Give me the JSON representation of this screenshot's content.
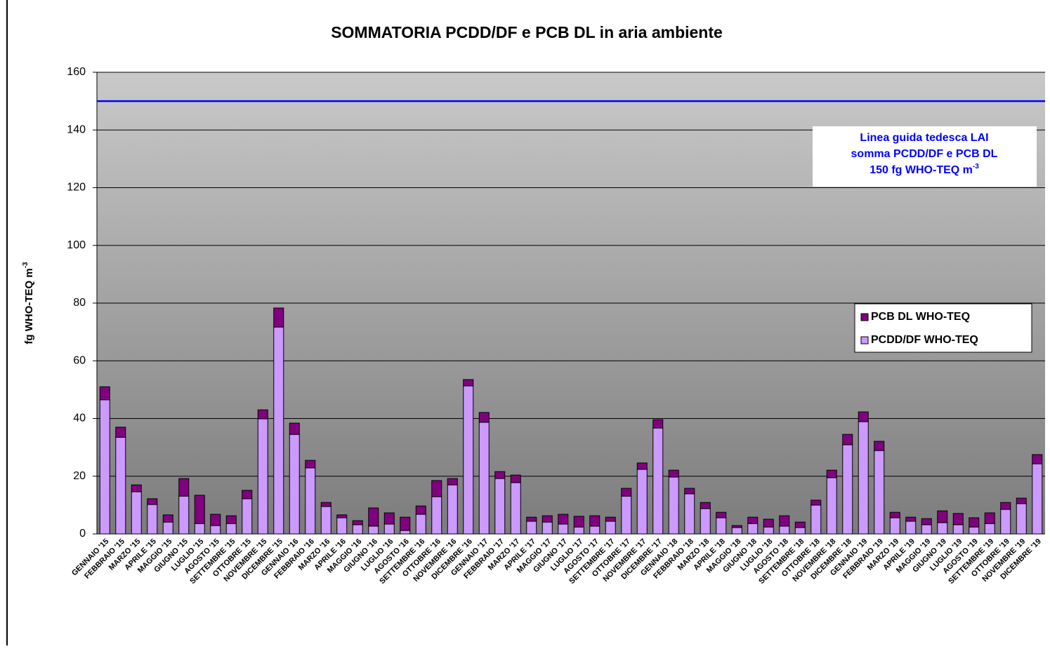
{
  "chart_data": {
    "type": "stacked_bar",
    "title": "SOMMATORIA PCDD/DF e PCB DL in aria ambiente",
    "y_label": {
      "text": "fg WHO-TEQ m",
      "sup": "-3"
    },
    "categories": [
      "GENNAIO '15",
      "FEBBRAIO '15",
      "MARZO '15",
      "APRILE '15",
      "MAGGIO '15",
      "GIUGNO '15",
      "LUGLIO '15",
      "AGOSTO '15",
      "SETTEMBRE '15",
      "OTTOBRE '15",
      "NOVEMBRE '15",
      "DICEMBRE '15",
      "GENNAIO '16",
      "FEBBRAIO '16",
      "MARZO '16",
      "APRILE '16",
      "MAGGIO '16",
      "GIUGNO '16",
      "LUGLIO '16",
      "AGOSTO '16",
      "SETTEMBRE '16",
      "OTTOBRE '16",
      "NOVEMBRE '16",
      "DICEMBRE '16",
      "GENNAIO '17",
      "FEBBRAIO '17",
      "MARZO '17",
      "APRILE '17",
      "MAGGIO '17",
      "GIUGNO '17",
      "LUGLIO '17",
      "AGOSTO '17",
      "SETTEMBRE '17",
      "OTTOBRE '17",
      "NOVEMBRE '17",
      "DICEMBRE '17",
      "GENNAIO '18",
      "FEBBRAIO '18",
      "MARZO '18",
      "APRILE '18",
      "MAGGIO '18",
      "GIUGNO '18",
      "LUGLIO '18",
      "AGOSTO '18",
      "SETTEMBRE '18",
      "OTTOBRE '18",
      "NOVEMBRE '18",
      "DICEMBRE '18",
      "GENNAIO '19",
      "FEBBRAIO '19",
      "MARZO '19",
      "APRILE '19",
      "MAGGIO '19",
      "GIUGNO '19",
      "LUGLIO '19",
      "AGOSTO '19",
      "SETTEMBRE '19",
      "OTTOBRE '19",
      "NOVEMBRE '19",
      "DICEMBRE '19"
    ],
    "series": [
      {
        "name": "PCDD/DF WHO-TEQ",
        "color": "#cc99ff",
        "values": [
          46.5,
          33.5,
          14.6,
          10.2,
          4.1,
          13.1,
          3.6,
          2.9,
          3.6,
          12.2,
          39.9,
          71.7,
          34.5,
          22.9,
          9.5,
          5.6,
          3.2,
          2.7,
          3.4,
          1.2,
          6.8,
          12.9,
          17,
          51.3,
          38.7,
          19.2,
          17.8,
          4.4,
          4.1,
          3.4,
          2.4,
          2.7,
          4.4,
          13.1,
          22.4,
          36.7,
          19.7,
          13.9,
          8.8,
          5.6,
          2.2,
          3.6,
          2.4,
          2.7,
          2.2,
          10,
          19.5,
          30.9,
          38.9,
          28.9,
          5.6,
          4.4,
          3.2,
          3.9,
          3.2,
          2.4,
          3.6,
          8.5,
          10.5,
          24.3
        ]
      },
      {
        "name": "PCB DL WHO-TEQ",
        "color": "#800080",
        "values": [
          4.5,
          3.5,
          2.4,
          2,
          2.5,
          6.1,
          9.8,
          3.9,
          2.7,
          2.9,
          3.1,
          6.6,
          3.9,
          2.6,
          1.4,
          1,
          1.4,
          6.3,
          3.9,
          4.6,
          2.9,
          5.6,
          2.2,
          2.2,
          3.4,
          2.4,
          2.6,
          1.4,
          2.2,
          3.4,
          3.7,
          3.6,
          1.4,
          2.7,
          2.2,
          2.9,
          2.4,
          1.9,
          2.1,
          1.9,
          0.7,
          2.2,
          2.7,
          3.6,
          1.9,
          1.7,
          2.6,
          3.6,
          3.4,
          3.2,
          1.9,
          1.4,
          2.1,
          4.1,
          3.9,
          3.2,
          3.7,
          2.4,
          1.9,
          3.2
        ]
      }
    ],
    "guideline": {
      "value": 150,
      "color": "#0000ff",
      "annotation": [
        "Linea guida tedesca LAI",
        "somma PCDD/DF e PCB DL",
        {
          "text": "150 fg WHO-TEQ m",
          "sup": "-3"
        }
      ]
    },
    "ylim": [
      0,
      160
    ],
    "yticks": [
      0,
      20,
      40,
      60,
      80,
      100,
      120,
      140,
      160
    ],
    "grid": true,
    "legend": "right"
  }
}
